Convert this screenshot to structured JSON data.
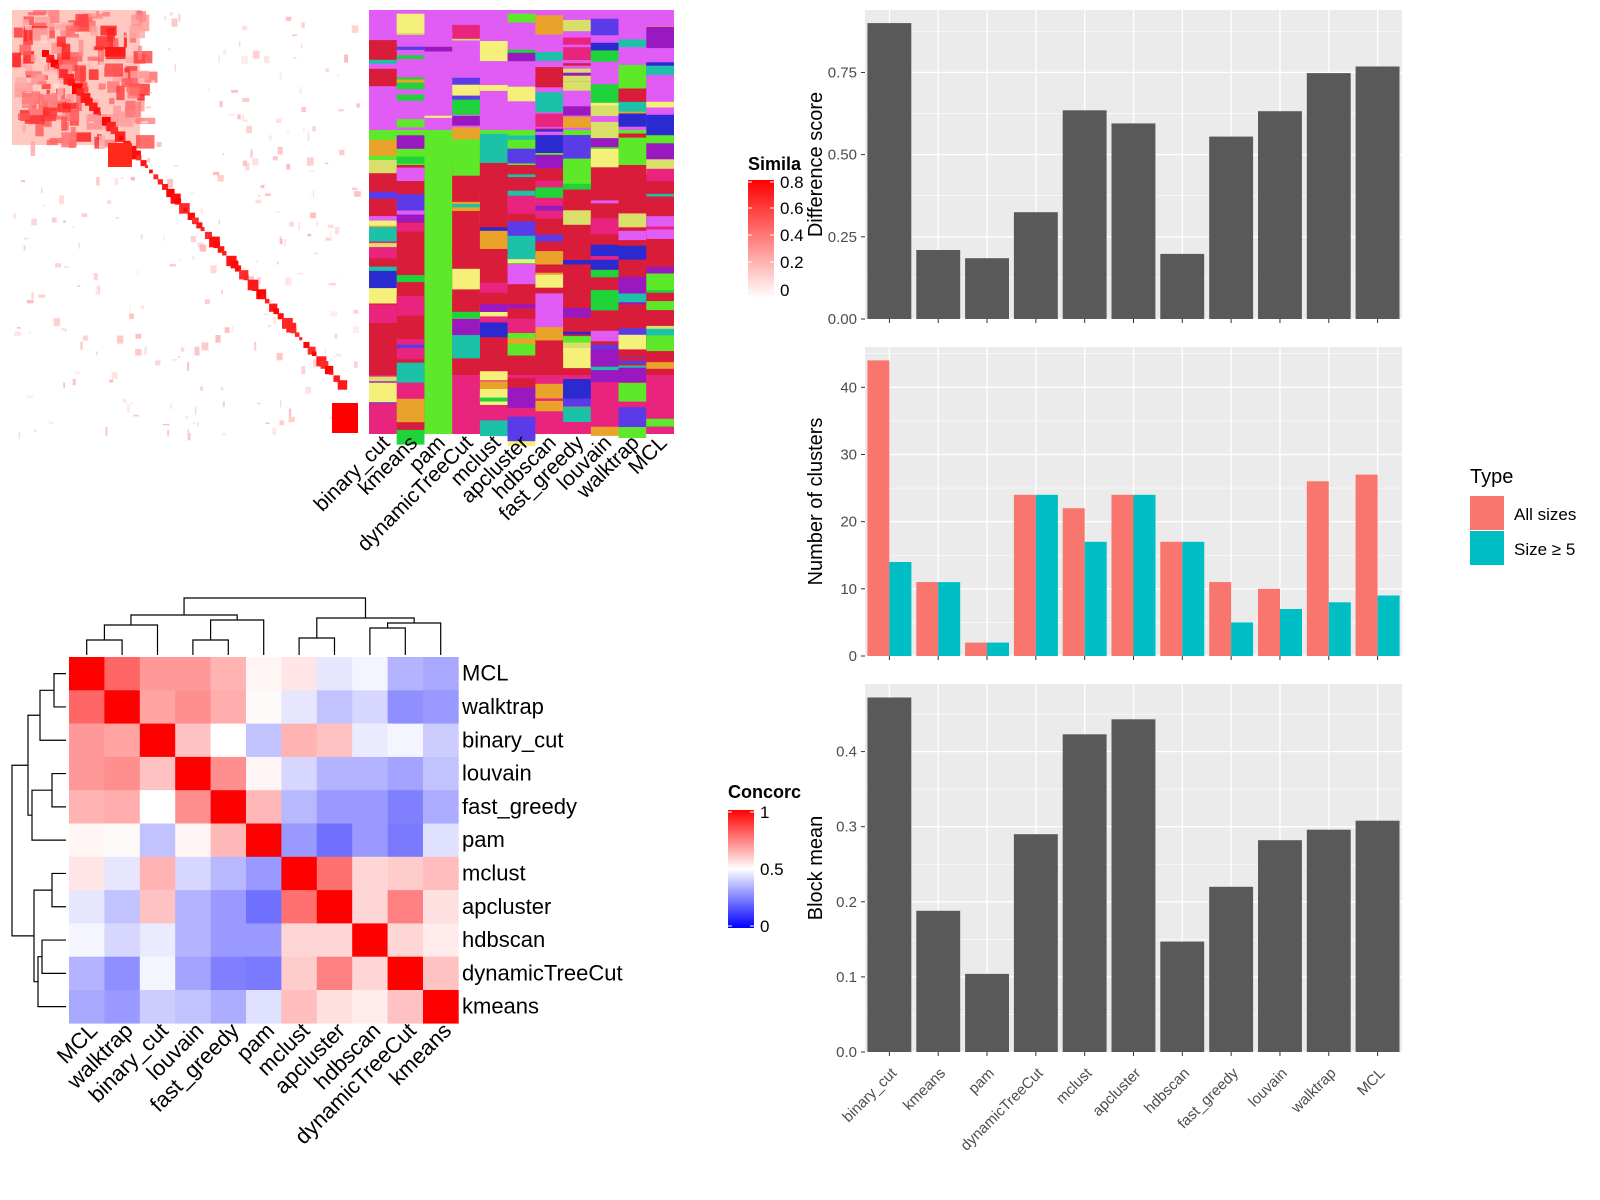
{
  "similarity_legend": {
    "title": "Simila",
    "ticks": [
      "0.8",
      "0.6",
      "0.4",
      "0.2",
      "0"
    ]
  },
  "concordance_legend": {
    "title": "Concorc",
    "ticks": [
      "1",
      "0.5",
      "0"
    ]
  },
  "colors": {
    "bar_fill": "#595959",
    "panel_bg": "#ebebeb",
    "grid": "#ffffff",
    "series_all": "#f8766d",
    "series_large": "#00bfc4",
    "heat_high": "#ff0000",
    "heat_mid": "#ffffff",
    "heat_low": "#0000ff"
  },
  "chart_data": [
    {
      "type": "heatmap",
      "id": "similarity-heatmap",
      "legend_title": "Simila",
      "value_range": [
        0,
        0.8
      ],
      "description_values": "block-diagonal similarity matrix of samples"
    },
    {
      "type": "heatmap",
      "id": "class-assignment",
      "columns": [
        "binary_cut",
        "kmeans",
        "pam",
        "dynamicTreeCut",
        "mclust",
        "apcluster",
        "hdbscan",
        "fast_greedy",
        "louvain",
        "walktrap",
        "MCL"
      ]
    },
    {
      "type": "heatmap",
      "id": "concordance-heatmap",
      "legend_title": "Concorc",
      "value_range": [
        0,
        1
      ],
      "rows": [
        "MCL",
        "walktrap",
        "binary_cut",
        "louvain",
        "fast_greedy",
        "pam",
        "mclust",
        "apcluster",
        "hdbscan",
        "dynamicTreeCut",
        "kmeans"
      ],
      "columns": [
        "MCL",
        "walktrap",
        "binary_cut",
        "louvain",
        "fast_greedy",
        "pam",
        "mclust",
        "apcluster",
        "hdbscan",
        "dynamicTreeCut",
        "kmeans"
      ],
      "values": [
        [
          1.0,
          0.8,
          0.7,
          0.7,
          0.65,
          0.52,
          0.55,
          0.45,
          0.48,
          0.35,
          0.33
        ],
        [
          0.8,
          1.0,
          0.68,
          0.72,
          0.66,
          0.51,
          0.45,
          0.38,
          0.42,
          0.28,
          0.3
        ],
        [
          0.7,
          0.68,
          1.0,
          0.62,
          0.5,
          0.38,
          0.65,
          0.62,
          0.46,
          0.48,
          0.4
        ],
        [
          0.7,
          0.72,
          0.62,
          1.0,
          0.72,
          0.52,
          0.42,
          0.35,
          0.35,
          0.32,
          0.38
        ],
        [
          0.65,
          0.66,
          0.5,
          0.72,
          1.0,
          0.64,
          0.36,
          0.3,
          0.3,
          0.25,
          0.34
        ],
        [
          0.52,
          0.51,
          0.38,
          0.52,
          0.64,
          1.0,
          0.3,
          0.22,
          0.3,
          0.24,
          0.44
        ],
        [
          0.55,
          0.45,
          0.65,
          0.42,
          0.36,
          0.3,
          1.0,
          0.78,
          0.58,
          0.6,
          0.63
        ],
        [
          0.45,
          0.38,
          0.62,
          0.35,
          0.3,
          0.22,
          0.78,
          1.0,
          0.58,
          0.75,
          0.56
        ],
        [
          0.48,
          0.42,
          0.46,
          0.35,
          0.3,
          0.3,
          0.58,
          0.58,
          1.0,
          0.58,
          0.54
        ],
        [
          0.35,
          0.28,
          0.48,
          0.32,
          0.25,
          0.24,
          0.6,
          0.75,
          0.58,
          1.0,
          0.62
        ],
        [
          0.33,
          0.3,
          0.4,
          0.38,
          0.34,
          0.44,
          0.63,
          0.56,
          0.54,
          0.62,
          1.0
        ]
      ]
    },
    {
      "type": "bar",
      "id": "difference-score",
      "categories": [
        "binary_cut",
        "kmeans",
        "pam",
        "dynamicTreeCut",
        "mclust",
        "apcluster",
        "hdbscan",
        "fast_greedy",
        "louvain",
        "walktrap",
        "MCL"
      ],
      "values": [
        0.9,
        0.21,
        0.185,
        0.325,
        0.635,
        0.595,
        0.198,
        0.555,
        0.632,
        0.748,
        0.768
      ],
      "ylabel": "Difference score",
      "ylim": [
        0,
        0.94
      ],
      "yticks": [
        "0.00",
        "0.25",
        "0.50",
        "0.75"
      ],
      "grid": true
    },
    {
      "type": "bar",
      "id": "number-of-clusters",
      "categories": [
        "binary_cut",
        "kmeans",
        "pam",
        "dynamicTreeCut",
        "mclust",
        "apcluster",
        "hdbscan",
        "fast_greedy",
        "louvain",
        "walktrap",
        "MCL"
      ],
      "series": [
        {
          "name": "All sizes",
          "values": [
            44,
            11,
            2,
            24,
            22,
            24,
            17,
            11,
            10,
            26,
            27
          ]
        },
        {
          "name": "Size ≥ 5",
          "values": [
            14,
            11,
            2,
            24,
            17,
            24,
            17,
            5,
            7,
            8,
            9
          ]
        }
      ],
      "ylabel": "Number of clusters",
      "ylim": [
        0,
        46
      ],
      "yticks": [
        "0",
        "10",
        "20",
        "30",
        "40"
      ],
      "legend": {
        "title": "Type",
        "placement": "right"
      },
      "grid": true
    },
    {
      "type": "bar",
      "id": "block-mean",
      "categories": [
        "binary_cut",
        "kmeans",
        "pam",
        "dynamicTreeCut",
        "mclust",
        "apcluster",
        "hdbscan",
        "fast_greedy",
        "louvain",
        "walktrap",
        "MCL"
      ],
      "values": [
        0.472,
        0.188,
        0.104,
        0.29,
        0.423,
        0.443,
        0.147,
        0.22,
        0.282,
        0.296,
        0.308
      ],
      "ylabel": "Block mean",
      "ylim": [
        0,
        0.49
      ],
      "yticks": [
        "0.0",
        "0.1",
        "0.2",
        "0.3",
        "0.4"
      ],
      "grid": true
    }
  ]
}
